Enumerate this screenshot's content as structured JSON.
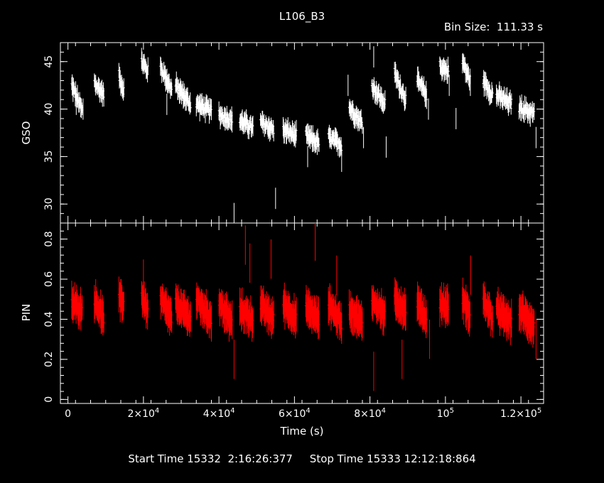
{
  "header": {
    "title": "L106_B3",
    "bin_size": "Bin Size:  111.33 s"
  },
  "footer": {
    "times": "Start Time 15332  2:16:26:377     Stop Time 15333 12:12:18:864"
  },
  "colors": {
    "background": "#000000",
    "axes": "#ffffff",
    "gso": "#ffffff",
    "pin": "#ff0000"
  },
  "chart_data": [
    {
      "type": "scatter",
      "panel": "top",
      "ylabel": "GSO",
      "xlabel": "",
      "xlim": [
        -2000,
        126000
      ],
      "ylim": [
        28,
        47
      ],
      "yticks": [
        30,
        35,
        40,
        45
      ],
      "ytick_labels": [
        "30",
        "35",
        "40",
        "45"
      ],
      "series": [
        {
          "color": "#ffffff",
          "error_bar": 0.8,
          "segments": [
            {
              "x0": 1000,
              "x1": 3800,
              "y0": 42.5,
              "y1": 39.8
            },
            {
              "x0": 7000,
              "x1": 9500,
              "y0": 42.8,
              "y1": 41.5
            },
            {
              "x0": 13500,
              "x1": 14800,
              "y0": 43.5,
              "y1": 42.0
            },
            {
              "x0": 19500,
              "x1": 21200,
              "y0": 45.0,
              "y1": 44.0
            },
            {
              "x0": 24500,
              "x1": 27500,
              "y0": 44.5,
              "y1": 42.0
            },
            {
              "x0": 28500,
              "x1": 32500,
              "y0": 42.5,
              "y1": 40.5
            },
            {
              "x0": 34000,
              "x1": 38000,
              "y0": 40.5,
              "y1": 39.8
            },
            {
              "x0": 40000,
              "x1": 43500,
              "y0": 39.5,
              "y1": 38.8
            },
            {
              "x0": 45500,
              "x1": 49000,
              "y0": 38.8,
              "y1": 38.0
            },
            {
              "x0": 51000,
              "x1": 54500,
              "y0": 38.6,
              "y1": 37.8
            },
            {
              "x0": 57000,
              "x1": 60500,
              "y0": 37.8,
              "y1": 37.2
            },
            {
              "x0": 63000,
              "x1": 66500,
              "y0": 37.2,
              "y1": 36.4
            },
            {
              "x0": 69000,
              "x1": 72500,
              "y0": 37.0,
              "y1": 36.2
            },
            {
              "x0": 74500,
              "x1": 78000,
              "y0": 40.2,
              "y1": 38.5
            },
            {
              "x0": 80500,
              "x1": 84000,
              "y0": 42.5,
              "y1": 40.5
            },
            {
              "x0": 86500,
              "x1": 89500,
              "y0": 43.8,
              "y1": 41.0
            },
            {
              "x0": 92500,
              "x1": 95000,
              "y0": 43.0,
              "y1": 41.5
            },
            {
              "x0": 98500,
              "x1": 100800,
              "y0": 44.5,
              "y1": 44.0
            },
            {
              "x0": 104500,
              "x1": 106500,
              "y0": 45.0,
              "y1": 43.0
            },
            {
              "x0": 110000,
              "x1": 112500,
              "y0": 43.0,
              "y1": 41.5
            },
            {
              "x0": 113500,
              "x1": 117500,
              "y0": 41.5,
              "y1": 40.5
            },
            {
              "x0": 119500,
              "x1": 123500,
              "y0": 40.2,
              "y1": 39.5
            }
          ],
          "outliers": [
            {
              "x": 2200,
              "y": 40.5
            },
            {
              "x": 4000,
              "y": 40.0
            },
            {
              "x": 26200,
              "y": 40.5
            },
            {
              "x": 44000,
              "y": 29.0
            },
            {
              "x": 55000,
              "y": 30.6
            },
            {
              "x": 63500,
              "y": 35.0
            },
            {
              "x": 72500,
              "y": 34.5
            },
            {
              "x": 74200,
              "y": 42.5
            },
            {
              "x": 78300,
              "y": 37.0
            },
            {
              "x": 81000,
              "y": 45.5
            },
            {
              "x": 84300,
              "y": 36.0
            },
            {
              "x": 95500,
              "y": 40.0
            },
            {
              "x": 101000,
              "y": 42.5
            },
            {
              "x": 102800,
              "y": 39.0
            },
            {
              "x": 106600,
              "y": 42.5
            },
            {
              "x": 124000,
              "y": 37.0
            }
          ]
        }
      ]
    },
    {
      "type": "scatter",
      "panel": "bottom",
      "ylabel": "PIN",
      "xlabel": "Time (s)",
      "xlim": [
        -2000,
        126000
      ],
      "ylim": [
        -0.02,
        0.88
      ],
      "yticks": [
        0,
        0.2,
        0.4,
        0.6,
        0.8
      ],
      "ytick_labels": [
        "0",
        "0.2",
        "0.4",
        "0.6",
        "0.8"
      ],
      "xticks": [
        0,
        20000,
        40000,
        60000,
        80000,
        100000,
        120000
      ],
      "xtick_labels": [
        {
          "m": "0",
          "e": ""
        },
        {
          "m": "2×10",
          "e": "4"
        },
        {
          "m": "4×10",
          "e": "4"
        },
        {
          "m": "6×10",
          "e": "4"
        },
        {
          "m": "8×10",
          "e": "4"
        },
        {
          "m": "10",
          "e": "5"
        },
        {
          "m": "1.2×10",
          "e": "5"
        }
      ],
      "series": [
        {
          "color": "#ff0000",
          "error_bar": 0.07,
          "segments": [
            {
              "x0": 1000,
              "x1": 3800,
              "y0": 0.48,
              "y1": 0.45
            },
            {
              "x0": 7000,
              "x1": 9500,
              "y0": 0.5,
              "y1": 0.4
            },
            {
              "x0": 13500,
              "x1": 14800,
              "y0": 0.5,
              "y1": 0.48
            },
            {
              "x0": 19500,
              "x1": 21200,
              "y0": 0.52,
              "y1": 0.44
            },
            {
              "x0": 24500,
              "x1": 27500,
              "y0": 0.5,
              "y1": 0.4
            },
            {
              "x0": 28500,
              "x1": 32500,
              "y0": 0.48,
              "y1": 0.4
            },
            {
              "x0": 34000,
              "x1": 38000,
              "y0": 0.5,
              "y1": 0.4
            },
            {
              "x0": 40000,
              "x1": 43500,
              "y0": 0.48,
              "y1": 0.38
            },
            {
              "x0": 45500,
              "x1": 49000,
              "y0": 0.45,
              "y1": 0.4
            },
            {
              "x0": 51000,
              "x1": 54500,
              "y0": 0.47,
              "y1": 0.4
            },
            {
              "x0": 57000,
              "x1": 60500,
              "y0": 0.48,
              "y1": 0.4
            },
            {
              "x0": 63000,
              "x1": 66500,
              "y0": 0.46,
              "y1": 0.4
            },
            {
              "x0": 69000,
              "x1": 72500,
              "y0": 0.48,
              "y1": 0.38
            },
            {
              "x0": 74500,
              "x1": 78000,
              "y0": 0.45,
              "y1": 0.38
            },
            {
              "x0": 80500,
              "x1": 84000,
              "y0": 0.5,
              "y1": 0.42
            },
            {
              "x0": 86500,
              "x1": 89500,
              "y0": 0.5,
              "y1": 0.44
            },
            {
              "x0": 92500,
              "x1": 95000,
              "y0": 0.48,
              "y1": 0.4
            },
            {
              "x0": 98500,
              "x1": 100800,
              "y0": 0.48,
              "y1": 0.46
            },
            {
              "x0": 104500,
              "x1": 106500,
              "y0": 0.5,
              "y1": 0.42
            },
            {
              "x0": 110000,
              "x1": 112500,
              "y0": 0.5,
              "y1": 0.4
            },
            {
              "x0": 113500,
              "x1": 117500,
              "y0": 0.45,
              "y1": 0.38
            },
            {
              "x0": 119500,
              "x1": 123500,
              "y0": 0.45,
              "y1": 0.36
            }
          ],
          "outliers": [
            {
              "x": 20000,
              "y": 0.6
            },
            {
              "x": 44000,
              "y": 0.2
            },
            {
              "x": 47000,
              "y": 0.77
            },
            {
              "x": 48200,
              "y": 0.68
            },
            {
              "x": 53800,
              "y": 0.7
            },
            {
              "x": 65500,
              "y": 0.79
            },
            {
              "x": 71200,
              "y": 0.62
            },
            {
              "x": 81000,
              "y": 0.14
            },
            {
              "x": 88500,
              "y": 0.2
            },
            {
              "x": 95800,
              "y": 0.3
            },
            {
              "x": 106700,
              "y": 0.62
            },
            {
              "x": 124000,
              "y": 0.3
            }
          ]
        }
      ]
    }
  ]
}
